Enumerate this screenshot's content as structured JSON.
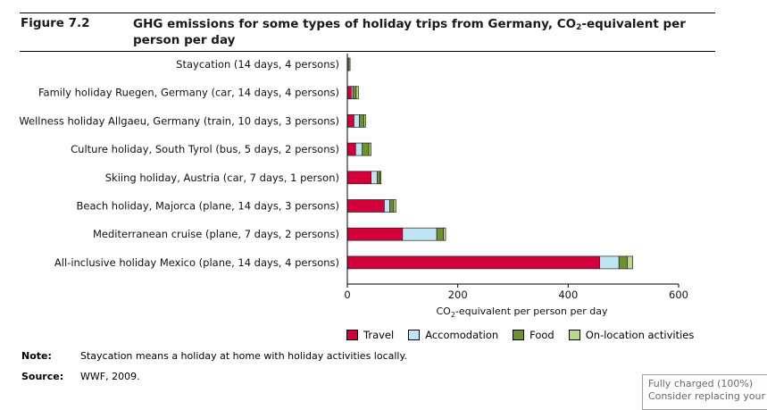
{
  "figure": {
    "label": "Figure 7.2",
    "title_pre": "GHG emissions for some types of holiday trips from Germany, CO",
    "title_sub": "2",
    "title_post": "-equivalent per person per day"
  },
  "colors": {
    "Travel": "#d4003c",
    "Accomodation": "#bfe5f2",
    "Food": "#70902a",
    "On-location activities": "#b9d98a"
  },
  "chart_data": {
    "type": "bar",
    "orientation": "horizontal",
    "stacked": true,
    "categories": [
      "Staycation (14 days, 4 persons)",
      "Family holiday Ruegen, Germany (car, 14 days, 4 persons)",
      "Wellness holiday Allgaeu, Germany (train, 10 days, 3 persons)",
      "Culture holiday, South Tyrol (bus, 5 days, 2 persons)",
      "Skiing holiday, Austria (car, 7 days, 1 person)",
      "Beach holiday, Majorca (plane, 14 days, 3 persons)",
      "Mediterranean cruise (plane, 7 days, 2 persons)",
      "All-inclusive holiday Mexico (plane, 14 days, 4 persons)"
    ],
    "series": [
      {
        "name": "Travel",
        "values": [
          0,
          7,
          12,
          15,
          43,
          67,
          100,
          457
        ]
      },
      {
        "name": "Accomodation",
        "values": [
          0,
          3,
          10,
          12,
          11,
          10,
          62,
          35
        ]
      },
      {
        "name": "Food",
        "values": [
          3,
          6,
          8,
          12,
          5,
          7,
          12,
          15
        ]
      },
      {
        "name": "On-location activities",
        "values": [
          2,
          4,
          3,
          4,
          2,
          4,
          4,
          10
        ]
      }
    ],
    "xlim": [
      0,
      600
    ],
    "xticks": [
      "0",
      "200",
      "400",
      "600"
    ],
    "xlabel_pre": "CO",
    "xlabel_sub": "2",
    "xlabel_post": "-equivalent per person per day",
    "legend_position": "bottom"
  },
  "note": {
    "label": "Note:",
    "text": "Staycation means a holiday at home with holiday activities locally."
  },
  "source": {
    "label": "Source:",
    "text": "WWF, 2009."
  },
  "tooltip": {
    "line1": "Fully charged (100%)",
    "line2": "Consider replacing your b"
  }
}
